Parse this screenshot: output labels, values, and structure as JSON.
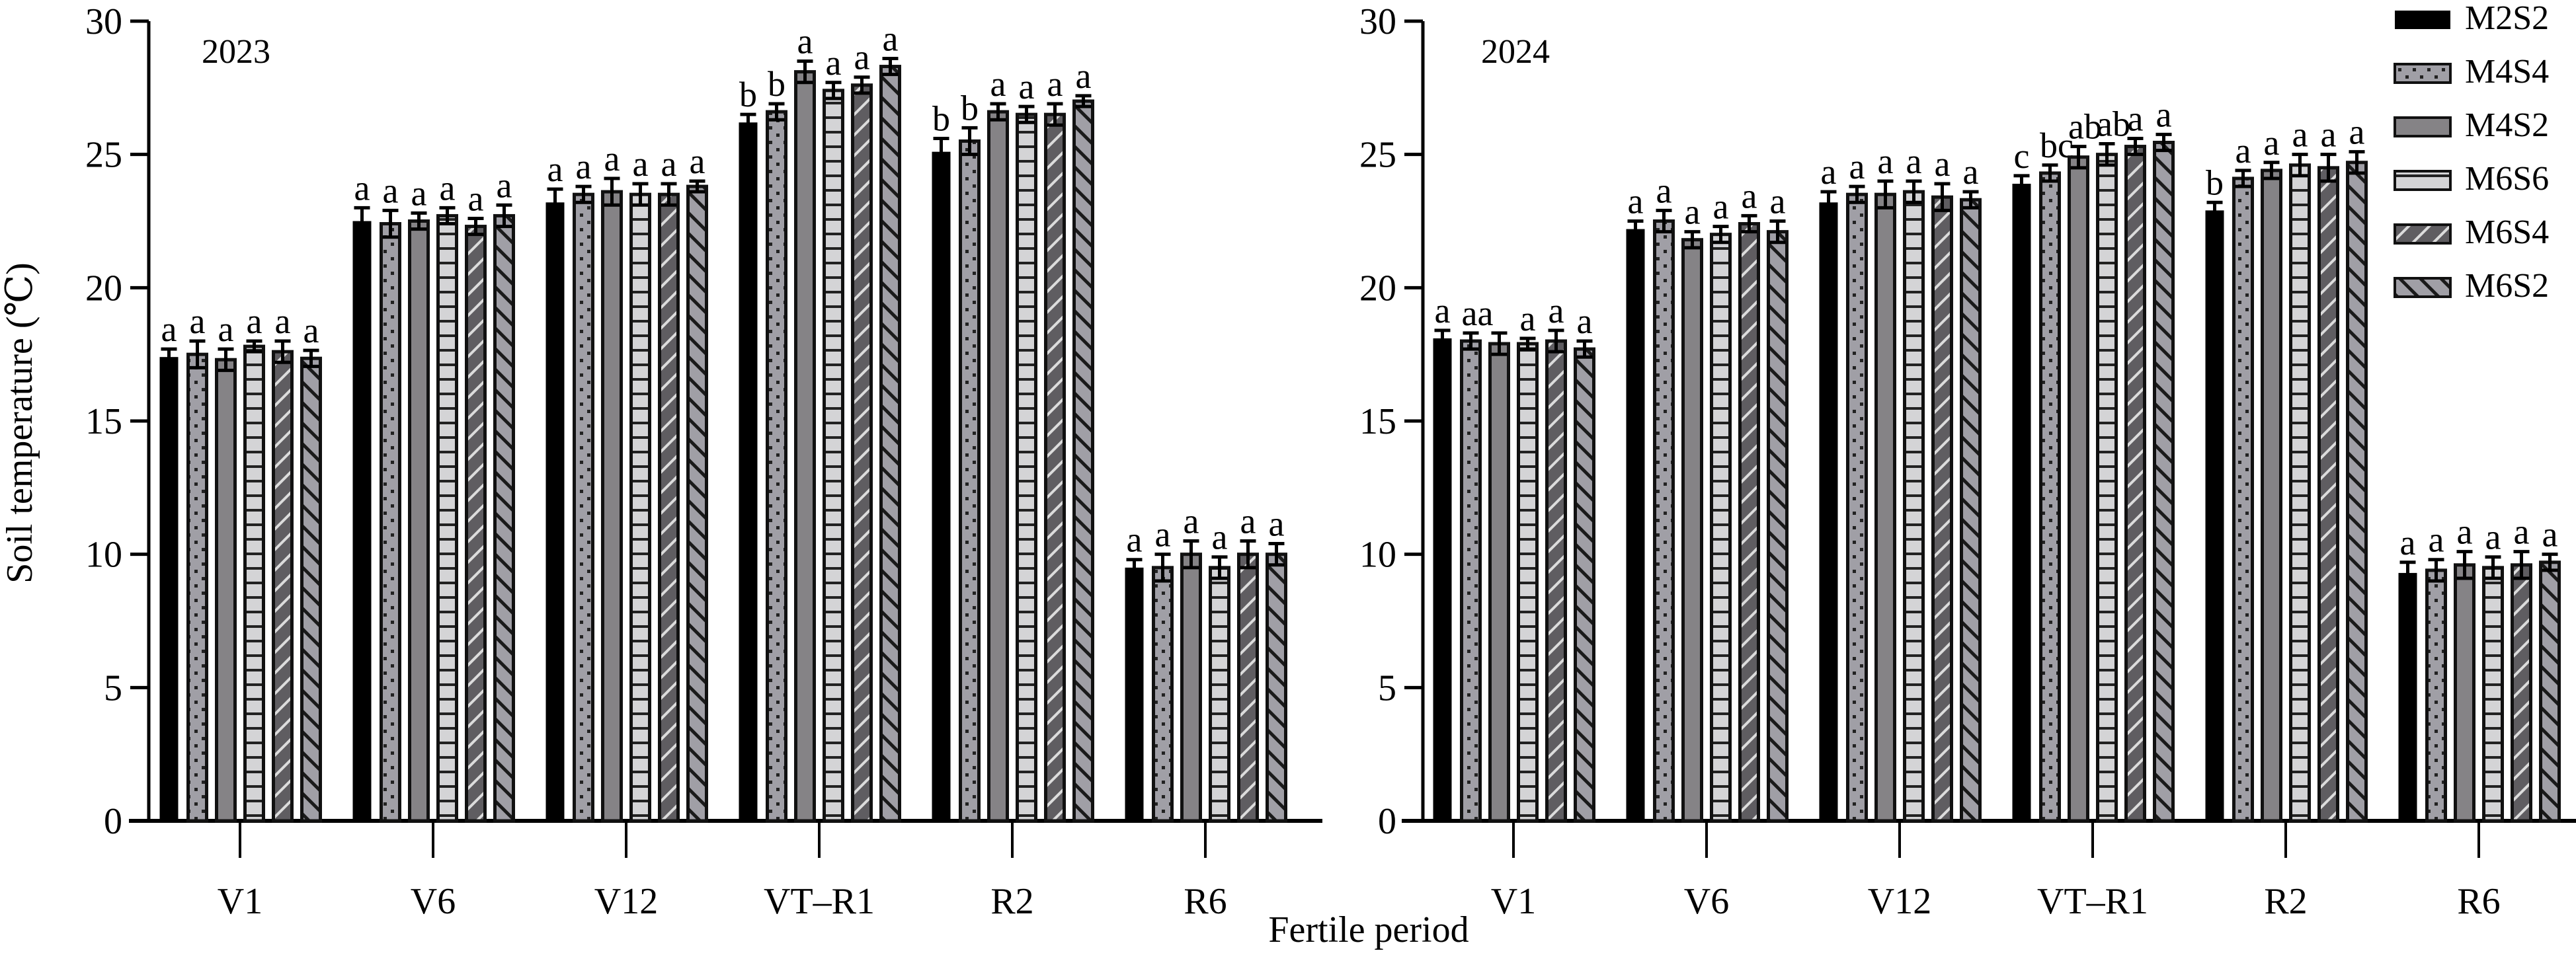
{
  "chart_data": [
    {
      "type": "bar",
      "panel": "2023",
      "title": "2023",
      "xlabel": "Fertile period",
      "ylabel": "Soil temperature (℃)",
      "ylim": [
        0,
        30
      ],
      "yticks": [
        0,
        5,
        10,
        15,
        20,
        25,
        30
      ],
      "grid": false,
      "categories": [
        "V1",
        "V6",
        "V12",
        "VT–R1",
        "R2",
        "R6"
      ],
      "series": [
        {
          "name": "M2S2",
          "values": [
            17.4,
            22.5,
            23.2,
            26.2,
            25.1,
            9.5
          ],
          "errors": [
            0.3,
            0.5,
            0.5,
            0.3,
            0.5,
            0.3
          ],
          "letters": [
            "a",
            "a",
            "a",
            "b",
            "b",
            "a"
          ]
        },
        {
          "name": "M4S4",
          "values": [
            17.5,
            22.4,
            23.5,
            26.6,
            25.5,
            9.5
          ],
          "errors": [
            0.5,
            0.5,
            0.3,
            0.3,
            0.5,
            0.5
          ],
          "letters": [
            "a",
            "a",
            "a",
            "b",
            "b",
            "a"
          ]
        },
        {
          "name": "M4S2",
          "values": [
            17.3,
            22.5,
            23.6,
            28.1,
            26.6,
            10.0
          ],
          "errors": [
            0.4,
            0.3,
            0.5,
            0.4,
            0.3,
            0.5
          ],
          "letters": [
            "a",
            "a",
            "a",
            "a",
            "a",
            "a"
          ]
        },
        {
          "name": "M6S6",
          "values": [
            17.8,
            22.7,
            23.5,
            27.4,
            26.5,
            9.5
          ],
          "errors": [
            0.2,
            0.3,
            0.4,
            0.3,
            0.3,
            0.4
          ],
          "letters": [
            "a",
            "a",
            "a",
            "a",
            "a",
            "a"
          ]
        },
        {
          "name": "M6S4",
          "values": [
            17.6,
            22.3,
            23.5,
            27.6,
            26.5,
            10.0
          ],
          "errors": [
            0.4,
            0.3,
            0.4,
            0.3,
            0.4,
            0.5
          ],
          "letters": [
            "a",
            "a",
            "a",
            "a",
            "a",
            "a"
          ]
        },
        {
          "name": "M6S2",
          "values": [
            17.35,
            22.7,
            23.8,
            28.3,
            27.0,
            10.0
          ],
          "errors": [
            0.3,
            0.4,
            0.2,
            0.3,
            0.2,
            0.4
          ],
          "letters": [
            "a",
            "a",
            "a",
            "a",
            "a",
            "a"
          ]
        }
      ]
    },
    {
      "type": "bar",
      "panel": "2024",
      "title": "2024",
      "xlabel": "Fertile period",
      "ylabel": "Soil temperature (℃)",
      "ylim": [
        0,
        30
      ],
      "yticks": [
        0,
        5,
        10,
        15,
        20,
        25,
        30
      ],
      "grid": false,
      "legend_position": "top-right",
      "categories": [
        "V1",
        "V6",
        "V12",
        "VT–R1",
        "R2",
        "R6"
      ],
      "series": [
        {
          "name": "M2S2",
          "values": [
            18.1,
            22.2,
            23.2,
            23.9,
            22.9,
            9.3
          ],
          "errors": [
            0.3,
            0.3,
            0.4,
            0.3,
            0.3,
            0.4
          ],
          "letters": [
            "a",
            "a",
            "a",
            "c",
            "b",
            "a"
          ]
        },
        {
          "name": "M4S4",
          "values": [
            18.0,
            22.5,
            23.5,
            24.3,
            24.1,
            9.4
          ],
          "errors": [
            0.3,
            0.4,
            0.3,
            0.3,
            0.3,
            0.4
          ],
          "letters": [
            "aa",
            "a",
            "a",
            "bc",
            "a",
            "a"
          ]
        },
        {
          "name": "M4S2",
          "values": [
            17.9,
            21.8,
            23.5,
            24.9,
            24.4,
            9.6
          ],
          "errors": [
            0.4,
            0.3,
            0.5,
            0.4,
            0.3,
            0.5
          ],
          "letters": [
            "",
            "a",
            "a",
            "ab",
            "a",
            "a"
          ]
        },
        {
          "name": "M6S6",
          "values": [
            17.9,
            22.0,
            23.6,
            25.0,
            24.6,
            9.5
          ],
          "errors": [
            0.2,
            0.3,
            0.4,
            0.4,
            0.4,
            0.4
          ],
          "letters": [
            "a",
            "a",
            "a",
            "ab",
            "a",
            "a"
          ]
        },
        {
          "name": "M6S4",
          "values": [
            18.0,
            22.4,
            23.4,
            25.3,
            24.5,
            9.6
          ],
          "errors": [
            0.4,
            0.3,
            0.5,
            0.3,
            0.5,
            0.5
          ],
          "letters": [
            "a",
            "a",
            "a",
            "a",
            "a",
            "a"
          ]
        },
        {
          "name": "M6S2",
          "values": [
            17.7,
            22.1,
            23.3,
            25.45,
            24.7,
            9.7
          ],
          "errors": [
            0.3,
            0.4,
            0.3,
            0.3,
            0.4,
            0.3
          ],
          "letters": [
            "a",
            "a",
            "a",
            "a",
            "a",
            "a"
          ]
        }
      ]
    }
  ],
  "legend": {
    "items": [
      {
        "name": "M2S2",
        "pattern": "solid-black"
      },
      {
        "name": "M4S4",
        "pattern": "dots"
      },
      {
        "name": "M4S2",
        "pattern": "solid-gray"
      },
      {
        "name": "M6S6",
        "pattern": "horizontal-lines"
      },
      {
        "name": "M6S4",
        "pattern": "forward-diagonal"
      },
      {
        "name": "M6S2",
        "pattern": "back-diagonal"
      }
    ]
  },
  "colors": {
    "M2S2": "#000000",
    "M4S4": "#a09fa6",
    "M4S2": "#858386",
    "M6S6": "#d4d4d6",
    "M6S4": "#5f5d61",
    "M6S2": "#a09fa6",
    "stroke": "#111111"
  },
  "labels": {
    "ylabel": "Soil temperature (℃)",
    "xlabel": "Fertile period",
    "panel_2023": "2023",
    "panel_2024": "2024"
  }
}
